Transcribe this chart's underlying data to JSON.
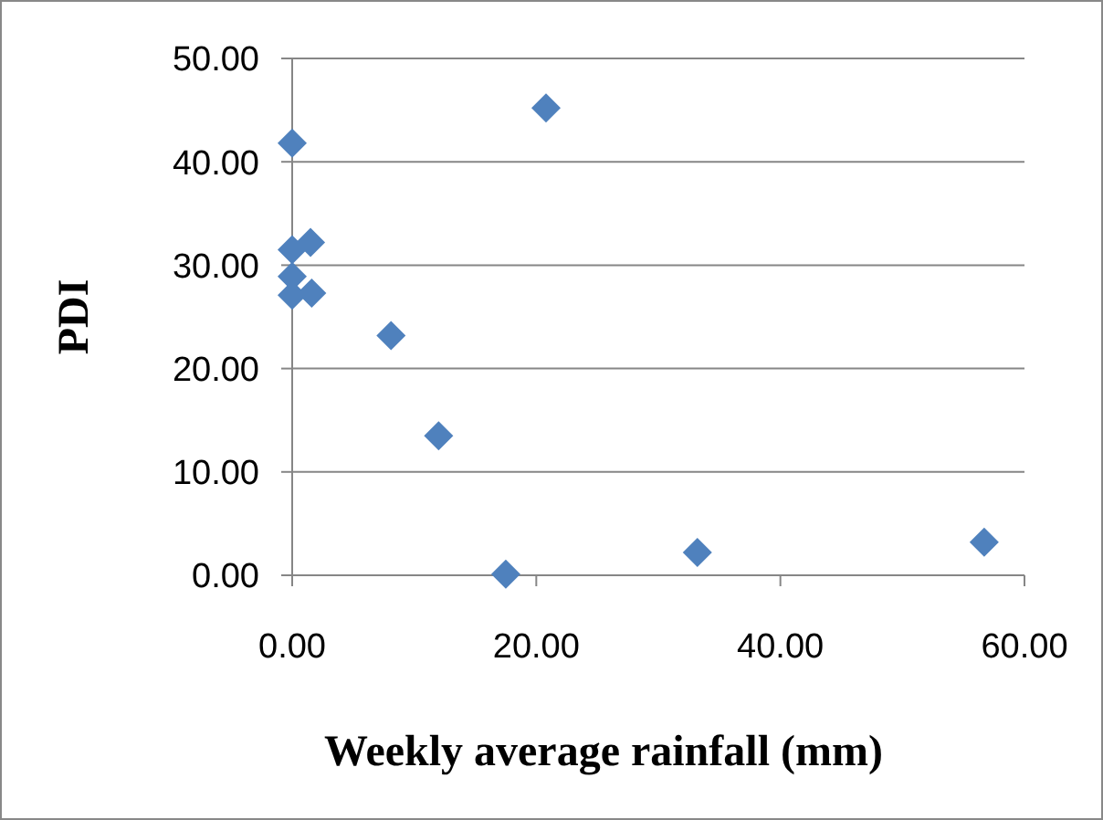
{
  "chart_data": {
    "type": "scatter",
    "xlabel": "Weekly average rainfall (mm)",
    "ylabel": "PDI",
    "x": [
      0,
      20.8,
      0,
      1.5,
      0,
      0,
      1.6,
      8.1,
      12.0,
      17.5,
      33.2,
      56.7
    ],
    "series": [
      {
        "color": "#4f81bd",
        "values": [
          41.8,
          45.2,
          31.5,
          32.2,
          28.9,
          27.1,
          27.3,
          23.2,
          13.5,
          0.1,
          2.2,
          3.2
        ]
      }
    ],
    "xlim": [
      0,
      60
    ],
    "xticks": [
      {
        "value": 0,
        "label": "0.00"
      },
      {
        "value": 20,
        "label": "20.00"
      },
      {
        "value": 40,
        "label": "40.00"
      },
      {
        "value": 60,
        "label": "60.00"
      }
    ],
    "ylim": [
      0,
      50
    ],
    "yticks": [
      {
        "value": 0,
        "label": "0.00"
      },
      {
        "value": 10,
        "label": "10.00"
      },
      {
        "value": 20,
        "label": "20.00"
      },
      {
        "value": 30,
        "label": "30.00"
      },
      {
        "value": 40,
        "label": "40.00"
      },
      {
        "value": 50,
        "label": "50.00"
      }
    ],
    "grid": "y",
    "marker": "diamond"
  }
}
